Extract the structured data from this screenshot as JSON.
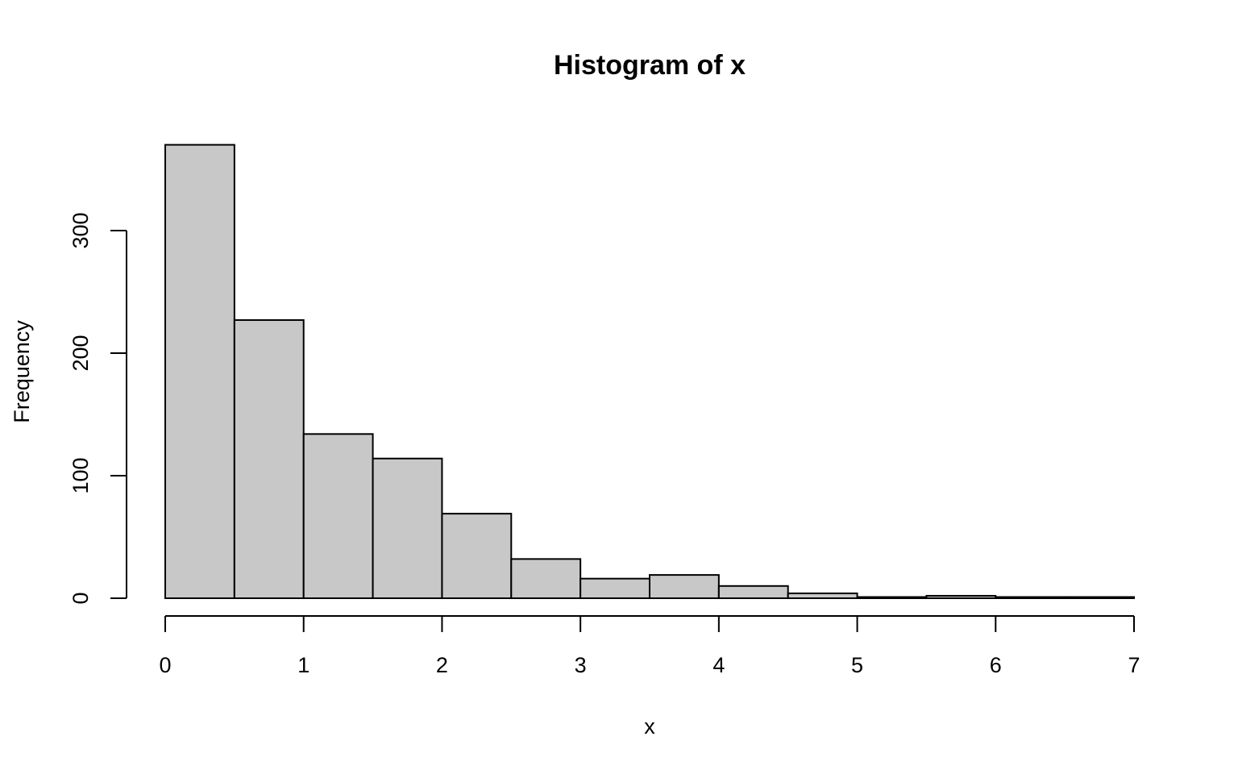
{
  "chart_data": {
    "type": "bar",
    "subtype": "histogram",
    "title": "Histogram of x",
    "xlabel": "x",
    "ylabel": "Frequency",
    "bins": [
      {
        "start": 0.0,
        "end": 0.5,
        "count": 370
      },
      {
        "start": 0.5,
        "end": 1.0,
        "count": 227
      },
      {
        "start": 1.0,
        "end": 1.5,
        "count": 134
      },
      {
        "start": 1.5,
        "end": 2.0,
        "count": 114
      },
      {
        "start": 2.0,
        "end": 2.5,
        "count": 69
      },
      {
        "start": 2.5,
        "end": 3.0,
        "count": 32
      },
      {
        "start": 3.0,
        "end": 3.5,
        "count": 16
      },
      {
        "start": 3.5,
        "end": 4.0,
        "count": 19
      },
      {
        "start": 4.0,
        "end": 4.5,
        "count": 10
      },
      {
        "start": 4.5,
        "end": 5.0,
        "count": 4
      },
      {
        "start": 5.0,
        "end": 5.5,
        "count": 1
      },
      {
        "start": 5.5,
        "end": 6.0,
        "count": 2
      },
      {
        "start": 6.0,
        "end": 6.5,
        "count": 1
      },
      {
        "start": 6.5,
        "end": 7.0,
        "count": 1
      }
    ],
    "xticks": [
      "0",
      "1",
      "2",
      "3",
      "4",
      "5",
      "6",
      "7"
    ],
    "yticks": [
      "0",
      "100",
      "200",
      "300"
    ],
    "xlim": [
      0,
      7
    ],
    "ylim": [
      0,
      370
    ],
    "grid": false,
    "legend": "none",
    "bar_fill": "#c8c8c8",
    "bar_stroke": "#000000"
  }
}
